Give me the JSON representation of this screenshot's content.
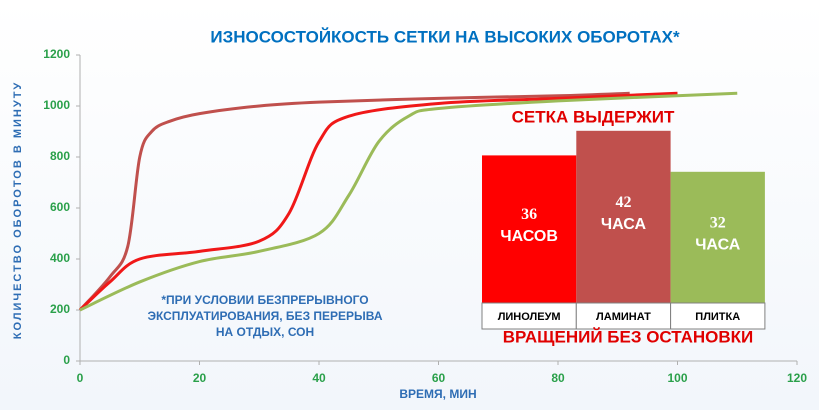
{
  "chart_data": [
    {
      "type": "line",
      "title": "ИЗНОСОСТОЙКОСТЬ  СЕТКИ НА ВЫСОКИХ ОБОРОТАХ*",
      "y_label": "КОЛИЧЕСТВО ОБОРОТОВ В МИНУТУ",
      "x_label": "ВРЕМЯ, МИН",
      "xlim": [
        0,
        120
      ],
      "xticks": [
        0,
        20,
        40,
        60,
        80,
        100,
        120
      ],
      "ylim": [
        0,
        1200
      ],
      "yticks": [
        0,
        200,
        400,
        600,
        800,
        1000,
        1200
      ],
      "series": [
        {
          "color": "#c0504d",
          "x": [
            0,
            5,
            8,
            10,
            12,
            15,
            20,
            30,
            40,
            60,
            80,
            92
          ],
          "values": [
            200,
            330,
            450,
            800,
            900,
            940,
            970,
            1000,
            1015,
            1030,
            1040,
            1050
          ]
        },
        {
          "color": "#f01818",
          "x": [
            0,
            5,
            10,
            20,
            30,
            35,
            40,
            45,
            60,
            80,
            100
          ],
          "values": [
            200,
            310,
            400,
            430,
            470,
            580,
            860,
            960,
            1010,
            1030,
            1050
          ]
        },
        {
          "color": "#9bbb59",
          "x": [
            0,
            10,
            20,
            30,
            40,
            45,
            50,
            55,
            60,
            80,
            110
          ],
          "values": [
            200,
            310,
            390,
            430,
            500,
            650,
            860,
            960,
            990,
            1020,
            1050
          ]
        }
      ],
      "annotation": [
        "*ПРИ УСЛОВИИ БЕЗПРЕРЫВНОГО",
        "ЭКСПЛУАТИРОВАНИЯ, БЕЗ ПЕРЕРЫВА",
        "НА ОТДЫХ, СОН"
      ]
    },
    {
      "type": "bar",
      "title": "СЕТКА ВЫДЕРЖИТ",
      "subtitle": "ВРАЩЕНИЙ БЕЗ ОСТАНОВКИ",
      "categories": [
        "ЛИНОЛЕУМ",
        "ЛАМИНАТ",
        "ПЛИТКА"
      ],
      "values": [
        36,
        42,
        32
      ],
      "value_labels": [
        "36 ЧАСОВ",
        "42 ЧАСА",
        "32 ЧАСА"
      ],
      "colors": [
        "#ff0000",
        "#c0504d",
        "#9bbb59"
      ]
    }
  ]
}
